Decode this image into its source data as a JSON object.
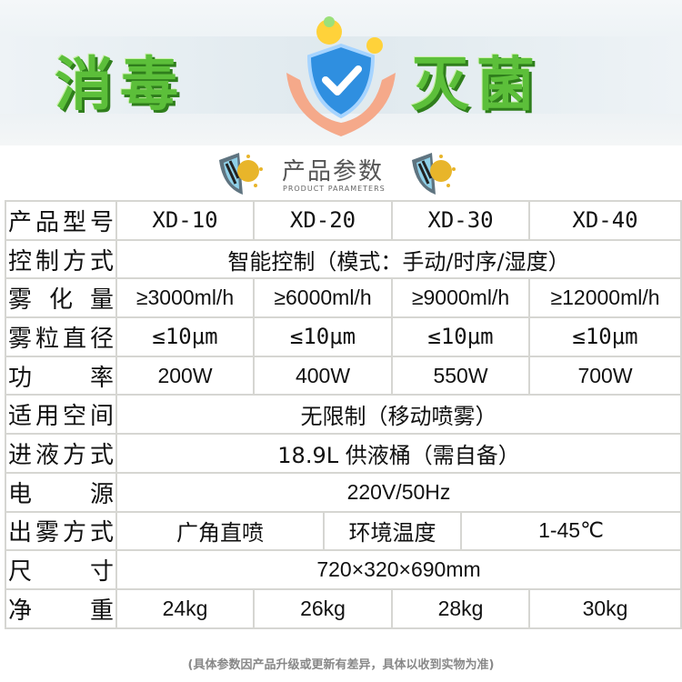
{
  "banner": {
    "left_title": "消毒",
    "right_title": "灭菌",
    "emblem": "hand-shield-check-icon",
    "accent_color": "#5cbf3a"
  },
  "section": {
    "title": "产品参数",
    "subtitle": "PRODUCT PARAMETERS",
    "icon": "shield-virus-icon"
  },
  "table": {
    "model": {
      "label": "产品型号",
      "values": [
        "XD-10",
        "XD-20",
        "XD-30",
        "XD-40"
      ]
    },
    "control": {
      "label": "控制方式",
      "value": "智能控制（模式：手动/时序/湿度）"
    },
    "atomization": {
      "label": "雾化量",
      "values": [
        "≥3000ml/h",
        "≥6000ml/h",
        "≥9000ml/h",
        "≥12000ml/h"
      ]
    },
    "particle": {
      "label": "雾粒直径",
      "values": [
        "≤10μm",
        "≤10μm",
        "≤10μm",
        "≤10μm"
      ]
    },
    "power": {
      "label": "功率",
      "values": [
        "200W",
        "400W",
        "550W",
        "700W"
      ]
    },
    "space": {
      "label": "适用空间",
      "value": "无限制（移动喷雾）"
    },
    "liquid": {
      "label": "进液方式",
      "value": "18.9L 供液桶（需自备）"
    },
    "supply": {
      "label": "电源",
      "value": "220V/50Hz"
    },
    "spray": {
      "label": "出雾方式",
      "value": "广角直喷",
      "env_label": "环境温度",
      "env_value": "1-45℃"
    },
    "size": {
      "label": "尺寸",
      "value": "720×320×690mm"
    },
    "weight": {
      "label": "净重",
      "values": [
        "24kg",
        "26kg",
        "28kg",
        "30kg"
      ]
    }
  },
  "footnote": "(具体参数因产品升级或更新有差异，具体以收到实物为准)"
}
